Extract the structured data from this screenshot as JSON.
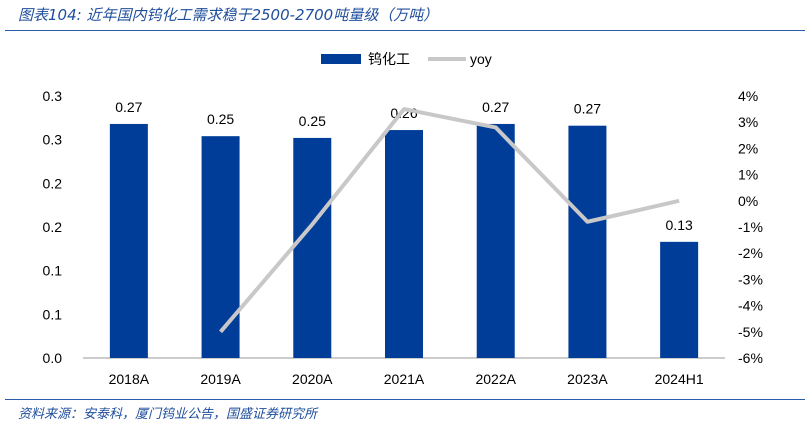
{
  "title": "图表104:  近年国内钨化工需求稳于2500-2700吨量级（万吨）",
  "source": "资料来源：安泰科，厦门钨业公告，国盛证券研究所",
  "colors": {
    "bar": "#003d99",
    "line": "#c8c8c8",
    "title": "#1f4e9c"
  },
  "chart_data": {
    "type": "bar+line",
    "categories": [
      "2018A",
      "2019A",
      "2020A",
      "2021A",
      "2022A",
      "2023A",
      "2024H1"
    ],
    "series": [
      {
        "name": "钨化工",
        "type": "bar",
        "axis": "left",
        "values": [
          0.268,
          0.254,
          0.252,
          0.261,
          0.268,
          0.266,
          0.133
        ],
        "labels": [
          "0.27",
          "0.25",
          "0.25",
          "0.26",
          "0.27",
          "0.27",
          "0.13"
        ]
      },
      {
        "name": "yoy",
        "type": "line",
        "axis": "right",
        "values": [
          null,
          -5.0,
          -0.9,
          3.5,
          2.8,
          -0.8,
          0.0
        ]
      }
    ],
    "left_axis": {
      "ylim": [
        0,
        0.3
      ],
      "ticks": [
        "0.0",
        "0.1",
        "0.1",
        "0.2",
        "0.2",
        "0.3",
        "0.3"
      ]
    },
    "right_axis": {
      "ylim": [
        -6,
        4
      ],
      "ticks": [
        "-6%",
        "-5%",
        "-4%",
        "-3%",
        "-2%",
        "-1%",
        "0%",
        "1%",
        "2%",
        "3%",
        "4%"
      ]
    },
    "legend": "top-right",
    "grid": false
  }
}
